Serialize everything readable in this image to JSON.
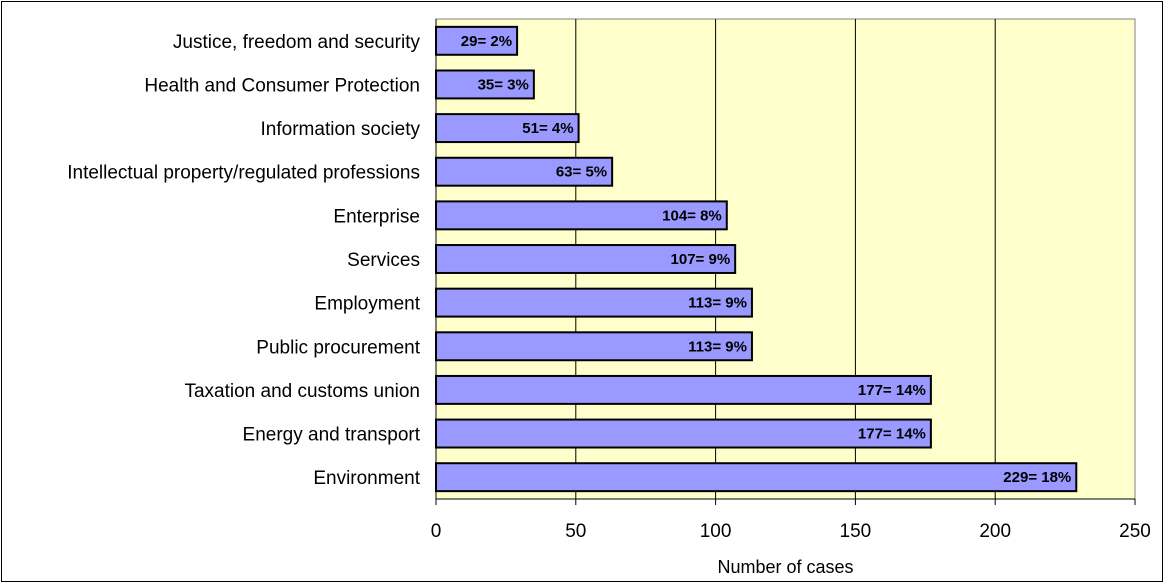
{
  "chart_data": {
    "type": "bar",
    "orientation": "horizontal",
    "categories": [
      "Justice, freedom and security",
      "Health and Consumer Protection",
      "Information society",
      "Intellectual property/regulated professions",
      "Enterprise",
      "Services",
      "Employment",
      "Public procurement",
      "Taxation and customs union",
      "Energy and transport",
      "Environment"
    ],
    "values": [
      29,
      35,
      51,
      63,
      104,
      107,
      113,
      113,
      177,
      177,
      229
    ],
    "data_labels": [
      "29= 2%",
      "35= 3%",
      "51= 4%",
      "63= 5%",
      "104= 8%",
      "107= 9%",
      "113= 9%",
      "113= 9%",
      "177= 14%",
      "177= 14%",
      "229= 18%"
    ],
    "xlabel": "Number of cases",
    "ylabel": "",
    "xlim": [
      0,
      250
    ],
    "xticks": [
      "0",
      "50",
      "100",
      "150",
      "200",
      "250"
    ],
    "grid": "vertical",
    "legend": "none",
    "colors": {
      "plot_background": "#ffffcc",
      "bar_fill": "#9999ff",
      "bar_stroke": "#000000",
      "gridline": "#000000"
    }
  }
}
